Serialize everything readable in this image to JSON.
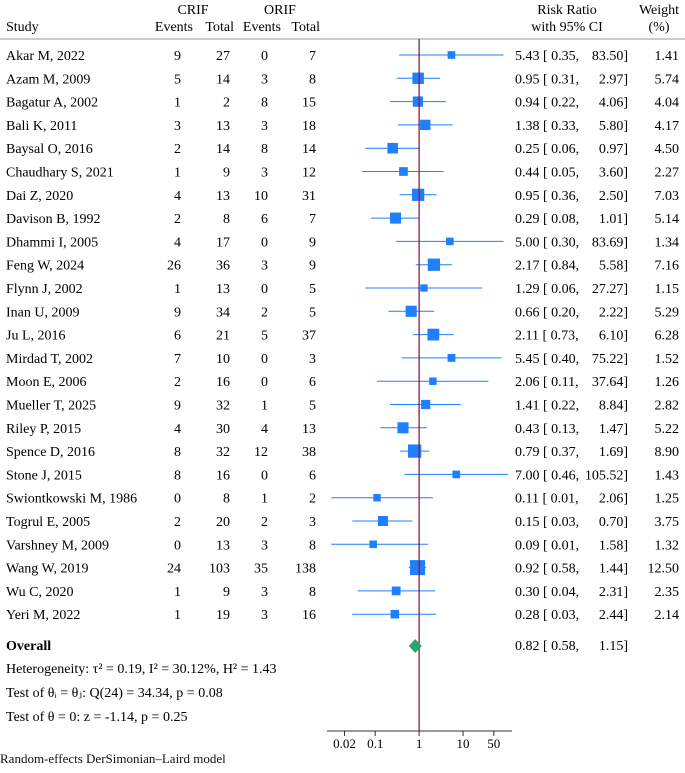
{
  "chart_data": {
    "type": "forest",
    "headers": {
      "study": "Study",
      "group1": "CRIF",
      "group2": "ORIF",
      "events": "Events",
      "total": "Total",
      "rr_line1": "Risk Ratio",
      "rr_line2": "with 95% CI",
      "weight_line1": "Weight",
      "weight_line2": "(%)"
    },
    "studies": [
      {
        "name": "Akar M, 2022",
        "crif_events": "9",
        "crif_total": "27",
        "orif_events": "0",
        "orif_total": "7",
        "rr": 5.43,
        "lo": 0.35,
        "hi": 83.5,
        "rr_label": "5.43 [ 0.35,",
        "hi_label": "83.50]",
        "weight": 1.41,
        "weight_label": "1.41"
      },
      {
        "name": "Azam M, 2009",
        "crif_events": "5",
        "crif_total": "14",
        "orif_events": "3",
        "orif_total": "8",
        "rr": 0.95,
        "lo": 0.31,
        "hi": 2.97,
        "rr_label": "0.95 [ 0.31,",
        "hi_label": "2.97]",
        "weight": 5.74,
        "weight_label": "5.74"
      },
      {
        "name": "Bagatur A, 2002",
        "crif_events": "1",
        "crif_total": "2",
        "orif_events": "8",
        "orif_total": "15",
        "rr": 0.94,
        "lo": 0.22,
        "hi": 4.06,
        "rr_label": "0.94 [ 0.22,",
        "hi_label": "4.06]",
        "weight": 4.04,
        "weight_label": "4.04"
      },
      {
        "name": "Bali K, 2011",
        "crif_events": "3",
        "crif_total": "13",
        "orif_events": "3",
        "orif_total": "18",
        "rr": 1.38,
        "lo": 0.33,
        "hi": 5.8,
        "rr_label": "1.38 [ 0.33,",
        "hi_label": "5.80]",
        "weight": 4.17,
        "weight_label": "4.17"
      },
      {
        "name": "Baysal O, 2016",
        "crif_events": "2",
        "crif_total": "14",
        "orif_events": "8",
        "orif_total": "14",
        "rr": 0.25,
        "lo": 0.06,
        "hi": 0.97,
        "rr_label": "0.25 [ 0.06,",
        "hi_label": "0.97]",
        "weight": 4.5,
        "weight_label": "4.50"
      },
      {
        "name": "Chaudhary S, 2021",
        "crif_events": "1",
        "crif_total": "9",
        "orif_events": "3",
        "orif_total": "12",
        "rr": 0.44,
        "lo": 0.05,
        "hi": 3.6,
        "rr_label": "0.44 [ 0.05,",
        "hi_label": "3.60]",
        "weight": 2.27,
        "weight_label": "2.27"
      },
      {
        "name": "Dai Z, 2020",
        "crif_events": "4",
        "crif_total": "13",
        "orif_events": "10",
        "orif_total": "31",
        "rr": 0.95,
        "lo": 0.36,
        "hi": 2.5,
        "rr_label": "0.95 [ 0.36,",
        "hi_label": "2.50]",
        "weight": 7.03,
        "weight_label": "7.03"
      },
      {
        "name": "Davison B, 1992",
        "crif_events": "2",
        "crif_total": "8",
        "orif_events": "6",
        "orif_total": "7",
        "rr": 0.29,
        "lo": 0.08,
        "hi": 1.01,
        "rr_label": "0.29 [ 0.08,",
        "hi_label": "1.01]",
        "weight": 5.14,
        "weight_label": "5.14"
      },
      {
        "name": "Dhammi I, 2005",
        "crif_events": "4",
        "crif_total": "17",
        "orif_events": "0",
        "orif_total": "9",
        "rr": 5.0,
        "lo": 0.3,
        "hi": 83.69,
        "rr_label": "5.00 [ 0.30,",
        "hi_label": "83.69]",
        "weight": 1.34,
        "weight_label": "1.34"
      },
      {
        "name": "Feng W, 2024",
        "crif_events": "26",
        "crif_total": "36",
        "orif_events": "3",
        "orif_total": "9",
        "rr": 2.17,
        "lo": 0.84,
        "hi": 5.58,
        "rr_label": "2.17 [ 0.84,",
        "hi_label": "5.58]",
        "weight": 7.16,
        "weight_label": "7.16"
      },
      {
        "name": "Flynn J, 2002",
        "crif_events": "1",
        "crif_total": "13",
        "orif_events": "0",
        "orif_total": "5",
        "rr": 1.29,
        "lo": 0.06,
        "hi": 27.27,
        "rr_label": "1.29 [ 0.06,",
        "hi_label": "27.27]",
        "weight": 1.15,
        "weight_label": "1.15"
      },
      {
        "name": "Inan U, 2009",
        "crif_events": "9",
        "crif_total": "34",
        "orif_events": "2",
        "orif_total": "5",
        "rr": 0.66,
        "lo": 0.2,
        "hi": 2.22,
        "rr_label": "0.66 [ 0.20,",
        "hi_label": "2.22]",
        "weight": 5.29,
        "weight_label": "5.29"
      },
      {
        "name": "Ju L, 2016",
        "crif_events": "6",
        "crif_total": "21",
        "orif_events": "5",
        "orif_total": "37",
        "rr": 2.11,
        "lo": 0.73,
        "hi": 6.1,
        "rr_label": "2.11 [ 0.73,",
        "hi_label": "6.10]",
        "weight": 6.28,
        "weight_label": "6.28"
      },
      {
        "name": "Mirdad T, 2002",
        "crif_events": "7",
        "crif_total": "10",
        "orif_events": "0",
        "orif_total": "3",
        "rr": 5.45,
        "lo": 0.4,
        "hi": 75.22,
        "rr_label": "5.45 [ 0.40,",
        "hi_label": "75.22]",
        "weight": 1.52,
        "weight_label": "1.52"
      },
      {
        "name": "Moon E, 2006",
        "crif_events": "2",
        "crif_total": "16",
        "orif_events": "0",
        "orif_total": "6",
        "rr": 2.06,
        "lo": 0.11,
        "hi": 37.64,
        "rr_label": "2.06 [ 0.11,",
        "hi_label": "37.64]",
        "weight": 1.26,
        "weight_label": "1.26"
      },
      {
        "name": "Mueller T, 2025",
        "crif_events": "9",
        "crif_total": "32",
        "orif_events": "1",
        "orif_total": "5",
        "rr": 1.41,
        "lo": 0.22,
        "hi": 8.84,
        "rr_label": "1.41 [ 0.22,",
        "hi_label": "8.84]",
        "weight": 2.82,
        "weight_label": "2.82"
      },
      {
        "name": "Riley P, 2015",
        "crif_events": "4",
        "crif_total": "30",
        "orif_events": "4",
        "orif_total": "13",
        "rr": 0.43,
        "lo": 0.13,
        "hi": 1.47,
        "rr_label": "0.43 [ 0.13,",
        "hi_label": "1.47]",
        "weight": 5.22,
        "weight_label": "5.22"
      },
      {
        "name": "Spence D, 2016",
        "crif_events": "8",
        "crif_total": "32",
        "orif_events": "12",
        "orif_total": "38",
        "rr": 0.79,
        "lo": 0.37,
        "hi": 1.69,
        "rr_label": "0.79 [ 0.37,",
        "hi_label": "1.69]",
        "weight": 8.9,
        "weight_label": "8.90"
      },
      {
        "name": "Stone J, 2015",
        "crif_events": "8",
        "crif_total": "16",
        "orif_events": "0",
        "orif_total": "6",
        "rr": 7.0,
        "lo": 0.46,
        "hi": 105.52,
        "rr_label": "7.00 [ 0.46,",
        "hi_label": "105.52]",
        "weight": 1.43,
        "weight_label": "1.43"
      },
      {
        "name": "Swiontkowski M, 1986",
        "crif_events": "0",
        "crif_total": "8",
        "orif_events": "1",
        "orif_total": "2",
        "rr": 0.11,
        "lo": 0.01,
        "hi": 2.06,
        "rr_label": "0.11 [ 0.01,",
        "hi_label": "2.06]",
        "weight": 1.25,
        "weight_label": "1.25"
      },
      {
        "name": "Togrul E, 2005",
        "crif_events": "2",
        "crif_total": "20",
        "orif_events": "2",
        "orif_total": "3",
        "rr": 0.15,
        "lo": 0.03,
        "hi": 0.7,
        "rr_label": "0.15 [ 0.03,",
        "hi_label": "0.70]",
        "weight": 3.75,
        "weight_label": "3.75"
      },
      {
        "name": "Varshney M, 2009",
        "crif_events": "0",
        "crif_total": "13",
        "orif_events": "3",
        "orif_total": "8",
        "rr": 0.09,
        "lo": 0.01,
        "hi": 1.58,
        "rr_label": "0.09 [ 0.01,",
        "hi_label": "1.58]",
        "weight": 1.32,
        "weight_label": "1.32"
      },
      {
        "name": "Wang W, 2019",
        "crif_events": "24",
        "crif_total": "103",
        "orif_events": "35",
        "orif_total": "138",
        "rr": 0.92,
        "lo": 0.58,
        "hi": 1.44,
        "rr_label": "0.92 [ 0.58,",
        "hi_label": "1.44]",
        "weight": 12.5,
        "weight_label": "12.50"
      },
      {
        "name": "Wu C, 2020",
        "crif_events": "1",
        "crif_total": "9",
        "orif_events": "3",
        "orif_total": "8",
        "rr": 0.3,
        "lo": 0.04,
        "hi": 2.31,
        "rr_label": "0.30 [ 0.04,",
        "hi_label": "2.31]",
        "weight": 2.35,
        "weight_label": "2.35"
      },
      {
        "name": "Yeri M, 2022",
        "crif_events": "1",
        "crif_total": "19",
        "orif_events": "3",
        "orif_total": "16",
        "rr": 0.28,
        "lo": 0.03,
        "hi": 2.44,
        "rr_label": "0.28 [ 0.03,",
        "hi_label": "2.44]",
        "weight": 2.14,
        "weight_label": "2.14"
      }
    ],
    "overall": {
      "label": "Overall",
      "rr": 0.82,
      "lo": 0.58,
      "hi": 1.15,
      "rr_label": "0.82 [ 0.58,",
      "hi_label": "1.15]"
    },
    "stats": [
      "Heterogeneity: τ² = 0.19, I² = 30.12%, H² = 1.43",
      "Test of θᵢ = θⱼ: Q(24) = 34.34, p = 0.08",
      "Test of θ = 0: z = -1.14, p = 0.25"
    ],
    "x_scale": "log",
    "x_ticks": [
      0.02,
      0.1,
      1,
      10,
      50
    ],
    "x_tick_labels": [
      "0.02",
      "0.1",
      "1",
      "10",
      "50"
    ],
    "xlim": [
      0.008,
      130
    ],
    "reference_line": 1,
    "footnote": "Random-effects DerSimonian–Laird model",
    "colors": {
      "marker": "#1f7fff",
      "ci_line": "#1f7fff",
      "overall": "#27a86b",
      "reference": "#8b1a3a",
      "axis": "#333333",
      "text": "#111111"
    }
  }
}
